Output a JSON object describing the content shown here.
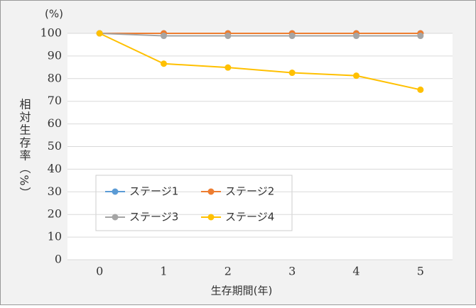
{
  "chart_data": {
    "type": "line",
    "y_unit": "(%)",
    "y_label": "相対生存率（%）",
    "x_label": "生存期間(年)",
    "categories": [
      "0",
      "1",
      "2",
      "3",
      "4",
      "5"
    ],
    "series": [
      {
        "name": "ステージ1",
        "color": "#5b9bd5",
        "values": [
          100,
          100,
          100,
          100,
          100,
          100
        ]
      },
      {
        "name": "ステージ2",
        "color": "#ed7d31",
        "values": [
          100,
          100,
          100,
          100,
          100,
          100
        ]
      },
      {
        "name": "ステージ3",
        "color": "#a5a5a5",
        "values": [
          100,
          98.9,
          98.9,
          98.9,
          98.9,
          98.9
        ]
      },
      {
        "name": "ステージ4",
        "color": "#ffc000",
        "values": [
          100,
          86.6,
          84.9,
          82.6,
          81.3,
          75.1
        ]
      }
    ],
    "ylim": [
      0,
      100
    ],
    "yticks": [
      0,
      10,
      20,
      30,
      40,
      50,
      60,
      70,
      80,
      90,
      100
    ],
    "grid": true
  }
}
